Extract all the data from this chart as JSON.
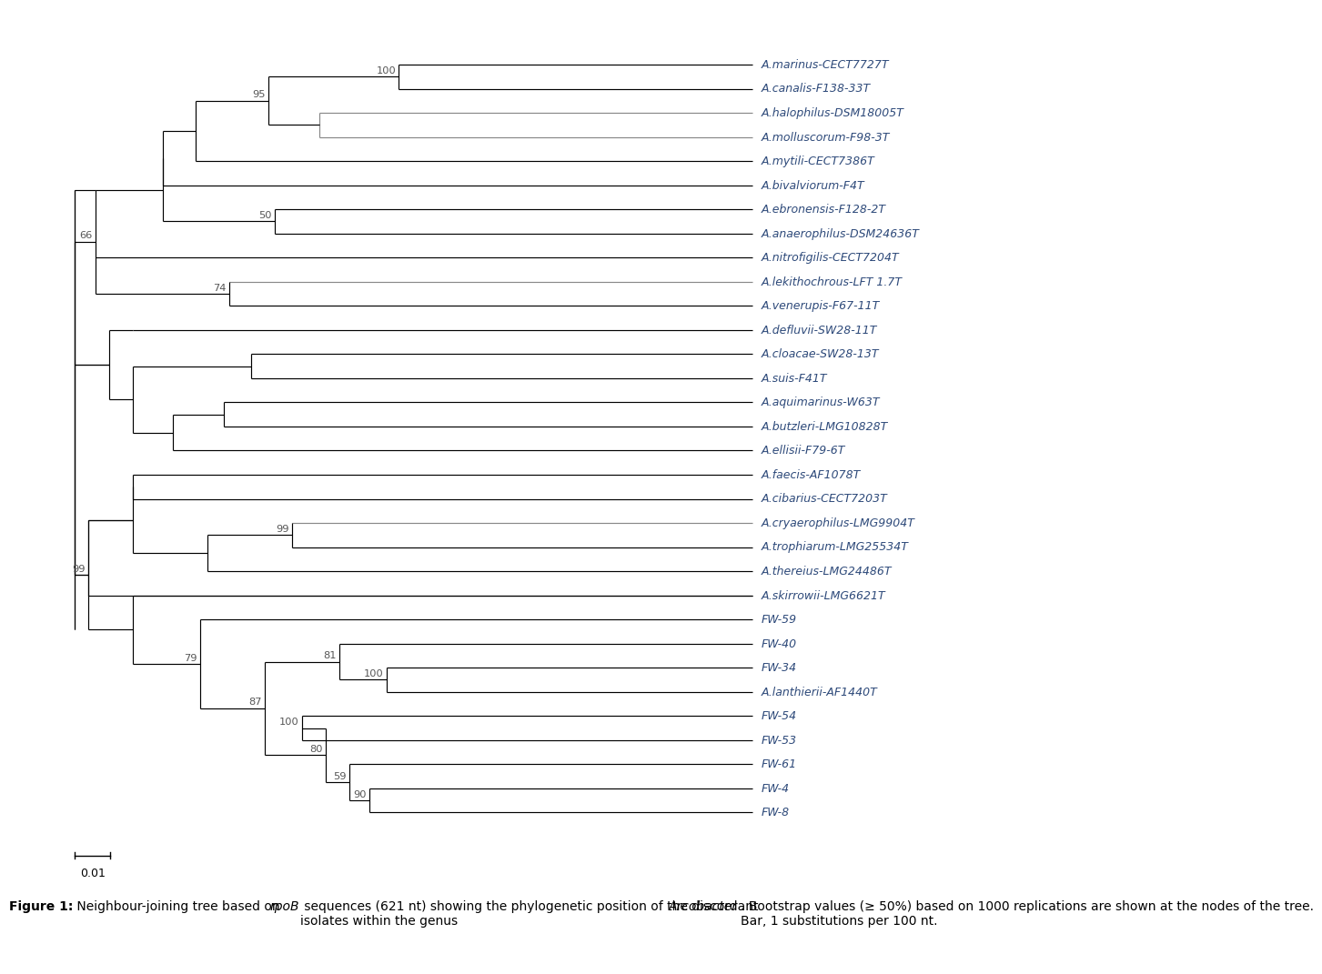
{
  "background_color": "#ffffff",
  "line_color": "#000000",
  "text_color": "#2e4a7a",
  "bootstrap_color": "#555555",
  "label_fontsize": 9.0,
  "bootstrap_fontsize": 8.2,
  "scale_bar_label": "0.01",
  "leaves": [
    "A.marinus-CECT7727T",
    "A.canalis-F138-33T",
    "A.halophilus-DSM18005T",
    "A.molluscorum-F98-3T",
    "A.mytili-CECT7386T",
    "A.bivalviorum-F4T",
    "A.ebronensis-F128-2T",
    "A.anaerophilus-DSM24636T",
    "A.nitrofigilis-CECT7204T",
    "A.lekithochrous-LFT 1.7T",
    "A.venerupis-F67-11T",
    "A.defluvii-SW28-11T",
    "A.cloacae-SW28-13T",
    "A.suis-F41T",
    "A.aquimarinus-W63T",
    "A.butzleri-LMG10828T",
    "A.ellisii-F79-6T",
    "A.faecis-AF1078T",
    "A.cibarius-CECT7203T",
    "A.cryaerophilus-LMG9904T",
    "A.trophiarum-LMG25534T",
    "A.thereius-LMG24486T",
    "A.skirrowii-LMG6621T",
    "FW-59",
    "FW-40",
    "FW-34",
    "A.lanthierii-AF1440T",
    "FW-54",
    "FW-53",
    "FW-61",
    "FW-4",
    "FW-8"
  ],
  "caption_bold": "Figure 1:",
  "caption_italic1": "rpoB",
  "caption_italic2": "Arcobacter",
  "caption_normal1": " Neighbour-joining tree based on ",
  "caption_normal2": " sequences (621 nt) showing the phylogenetic position of the discordant\nisolates within the genus ",
  "caption_normal3": ". Bootstrap values (≥ 50%) based on 1000 replications are shown at the nodes of the tree.\nBar, 1 substitutions per 100 nt."
}
